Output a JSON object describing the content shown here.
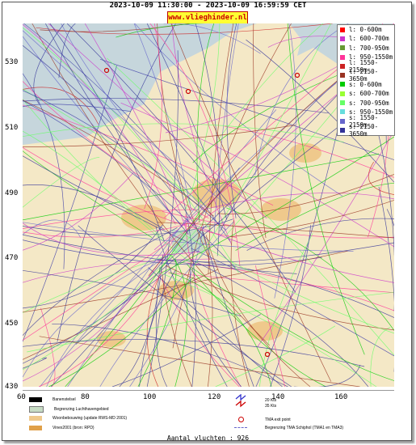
{
  "header": {
    "time_range": "2023-10-09 11:30:00 - 2023-10-09 16:59:59 CET",
    "site": "www.vlieghinder.nl"
  },
  "axes": {
    "y_ticks": [
      "530",
      "510",
      "490",
      "470",
      "450",
      "430"
    ],
    "x_ticks": [
      "60",
      "80",
      "100",
      "120",
      "140",
      "160"
    ]
  },
  "legend": [
    {
      "label": "l: 0-600m",
      "color": "#ff0000"
    },
    {
      "label": "l: 600-700m",
      "color": "#cc33cc"
    },
    {
      "label": "l: 700-950m",
      "color": "#669933"
    },
    {
      "label": "l: 950-1550m",
      "color": "#ff3399"
    },
    {
      "label": "l: 1550-2150m",
      "color": "#cc2222"
    },
    {
      "label": "l: 2150-3650m",
      "color": "#993322"
    },
    {
      "label": "s: 0-600m",
      "color": "#00cc00"
    },
    {
      "label": "s: 600-700m",
      "color": "#99ff33"
    },
    {
      "label": "s: 700-950m",
      "color": "#66ff66"
    },
    {
      "label": "s: 950-1550m",
      "color": "#66dddd"
    },
    {
      "label": "s: 1550-2150m",
      "color": "#6666cc"
    },
    {
      "label": "s: 2150-3650m",
      "color": "#333399"
    }
  ],
  "key": {
    "runway": "Banenstelsel",
    "airport_boundary": "Begrenzing Luchthavengebied",
    "housing": "Woonbebouwing (update RWS-MD 2001)",
    "vinex": "Vinex2001 (bron: RPD)",
    "kts20": "20 Kts",
    "kts35": "35 Kts",
    "tma_exit": "TMA exit point",
    "tma_boundary": "Begrenzing TMA Schiphol  (TMA1 en TMA3)"
  },
  "footer": {
    "flight_count": "Aantal vluchten : 926"
  },
  "colors": {
    "water": "#c6d6dc",
    "land": "#f4e8c6",
    "urban": "#efc98c",
    "airport": "#c7dcc4"
  }
}
